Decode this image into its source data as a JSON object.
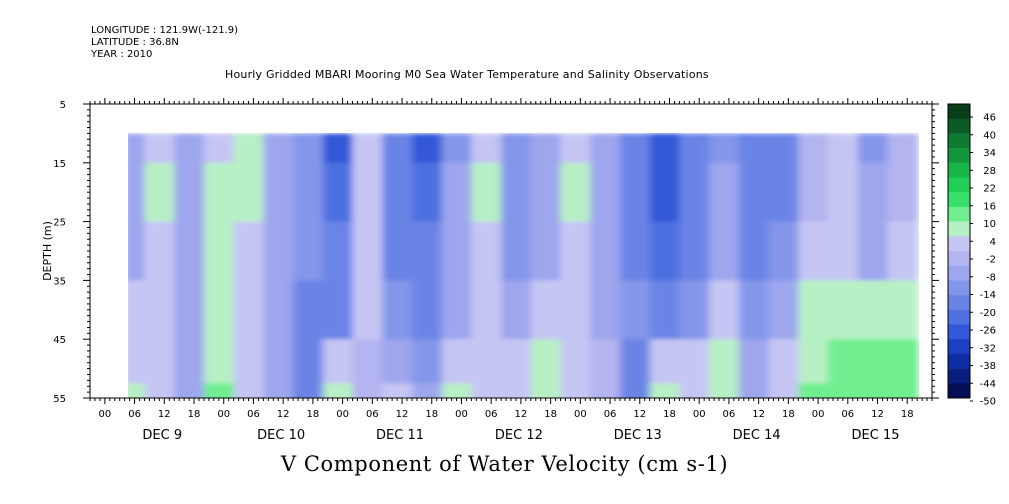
{
  "header": {
    "longitude": "LONGITUDE : 121.9W(-121.9)",
    "latitude": "LATITUDE : 36.8N",
    "year": "YEAR : 2010",
    "title": "Hourly Gridded MBARI Mooring M0 Sea Water Temperature and Salinity Observations"
  },
  "footer": {
    "variable_label": "V Component of Water Velocity (cm s-1)"
  },
  "chart_data": {
    "type": "heatmap",
    "title": "Hourly Gridded MBARI Mooring M0 Sea Water Temperature and Salinity Observations",
    "subtitle": "V Component of Water Velocity (cm s-1)",
    "units": "cm s-1",
    "ylabel": "DEPTH (m)",
    "y_ticks": [
      5,
      15,
      25,
      35,
      45,
      55
    ],
    "ylim": [
      5,
      55
    ],
    "y_inverted": true,
    "data_depth_range": [
      10,
      55
    ],
    "x_time_range": [
      "2010-12-08 21:00",
      "2010-12-15 23:00"
    ],
    "data_time_range": [
      "2010-12-09 05:00",
      "2010-12-15 19:00"
    ],
    "x_hour_ticks": [
      "00",
      "06",
      "12",
      "18",
      "00",
      "06",
      "12",
      "18",
      "00",
      "06",
      "12",
      "18",
      "00",
      "06",
      "12",
      "18",
      "00",
      "06",
      "12",
      "18",
      "00",
      "06",
      "12",
      "18",
      "00",
      "06",
      "12",
      "18"
    ],
    "x_day_labels": [
      "DEC 9",
      "DEC 10",
      "DEC 11",
      "DEC 12",
      "DEC 13",
      "DEC 14",
      "DEC 15"
    ],
    "colorbar_levels": [
      "46",
      "40",
      "34",
      "28",
      "22",
      "16",
      "10",
      "4",
      "-2",
      "-8",
      "-14",
      "-20",
      "-26",
      "-32",
      "-38",
      "-44",
      "-50"
    ],
    "colorbar_range": [
      -50,
      50
    ],
    "colorbar_colors_top_to_bottom": [
      "#0a3d1a",
      "#0c5a25",
      "#0e7a32",
      "#12973c",
      "#18b548",
      "#22cf56",
      "#38e06a",
      "#70ee90",
      "#b8f0c6",
      "#c6c6f4",
      "#b4b4f0",
      "#9ea6ee",
      "#8496ea",
      "#6a84e6",
      "#4e70e0",
      "#3058d8",
      "#1c40c4",
      "#102ea4",
      "#0a1e80",
      "#050f55"
    ],
    "time_columns_hours": [
      0,
      6,
      12,
      18,
      24,
      30,
      36,
      42,
      48,
      54,
      60,
      66,
      72,
      78,
      84,
      90,
      96,
      102,
      108,
      114,
      120,
      126,
      132,
      138,
      144,
      150,
      156
    ],
    "time_columns_origin": "2010-12-09 05:00",
    "depth_rows_m": [
      10,
      20,
      30,
      40,
      50,
      55
    ],
    "values": [
      [
        -8,
        4,
        -8,
        4,
        6,
        -8,
        -12,
        -26,
        4,
        -18,
        -26,
        -14,
        4,
        -12,
        -10,
        4,
        -8,
        -20,
        -26,
        -16,
        -12,
        -20,
        -18,
        -4,
        0,
        -12,
        -2
      ],
      [
        -10,
        6,
        -6,
        6,
        8,
        -6,
        -14,
        -24,
        4,
        -20,
        -22,
        -10,
        6,
        -12,
        -8,
        6,
        -8,
        -18,
        -26,
        -18,
        -10,
        -18,
        -16,
        -2,
        0,
        -10,
        -2
      ],
      [
        -8,
        4,
        -6,
        6,
        4,
        -6,
        -14,
        -20,
        4,
        -16,
        -18,
        -10,
        4,
        -14,
        -10,
        4,
        -10,
        -16,
        -22,
        -16,
        -10,
        -16,
        -14,
        2,
        4,
        -8,
        2
      ],
      [
        0,
        4,
        -8,
        6,
        2,
        -8,
        -16,
        -18,
        2,
        -12,
        -16,
        -8,
        4,
        -10,
        2,
        4,
        -8,
        -14,
        -20,
        -12,
        2,
        -12,
        -8,
        6,
        8,
        6,
        8
      ],
      [
        4,
        2,
        -10,
        8,
        0,
        -10,
        -18,
        4,
        -2,
        -8,
        -12,
        4,
        4,
        2,
        6,
        2,
        -4,
        -16,
        4,
        2,
        6,
        -8,
        2,
        8,
        10,
        10,
        12
      ],
      [
        6,
        0,
        -8,
        10,
        2,
        -8,
        -20,
        8,
        -4,
        4,
        -10,
        6,
        2,
        4,
        8,
        4,
        -2,
        -18,
        8,
        4,
        8,
        -6,
        4,
        10,
        12,
        12,
        14
      ]
    ]
  }
}
